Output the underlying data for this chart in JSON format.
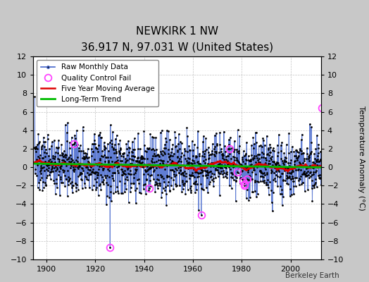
{
  "title": "NEWKIRK 1 NW",
  "subtitle": "36.917 N, 97.031 W (United States)",
  "ylabel_right": "Temperature Anomaly (°C)",
  "credit": "Berkeley Earth",
  "year_start": 1895,
  "year_end": 2012,
  "ylim": [
    -10,
    12
  ],
  "yticks": [
    -10,
    -8,
    -6,
    -4,
    -2,
    0,
    2,
    4,
    6,
    8,
    10,
    12
  ],
  "xticks": [
    1900,
    1920,
    1940,
    1960,
    1980,
    2000
  ],
  "bg_color": "#c8c8c8",
  "plot_bg_color": "#ffffff",
  "line_color": "#4466cc",
  "dot_color": "#000000",
  "ma_color": "#dd0000",
  "trend_color": "#00bb00",
  "qc_color": "#ff44ff",
  "seed": 137
}
